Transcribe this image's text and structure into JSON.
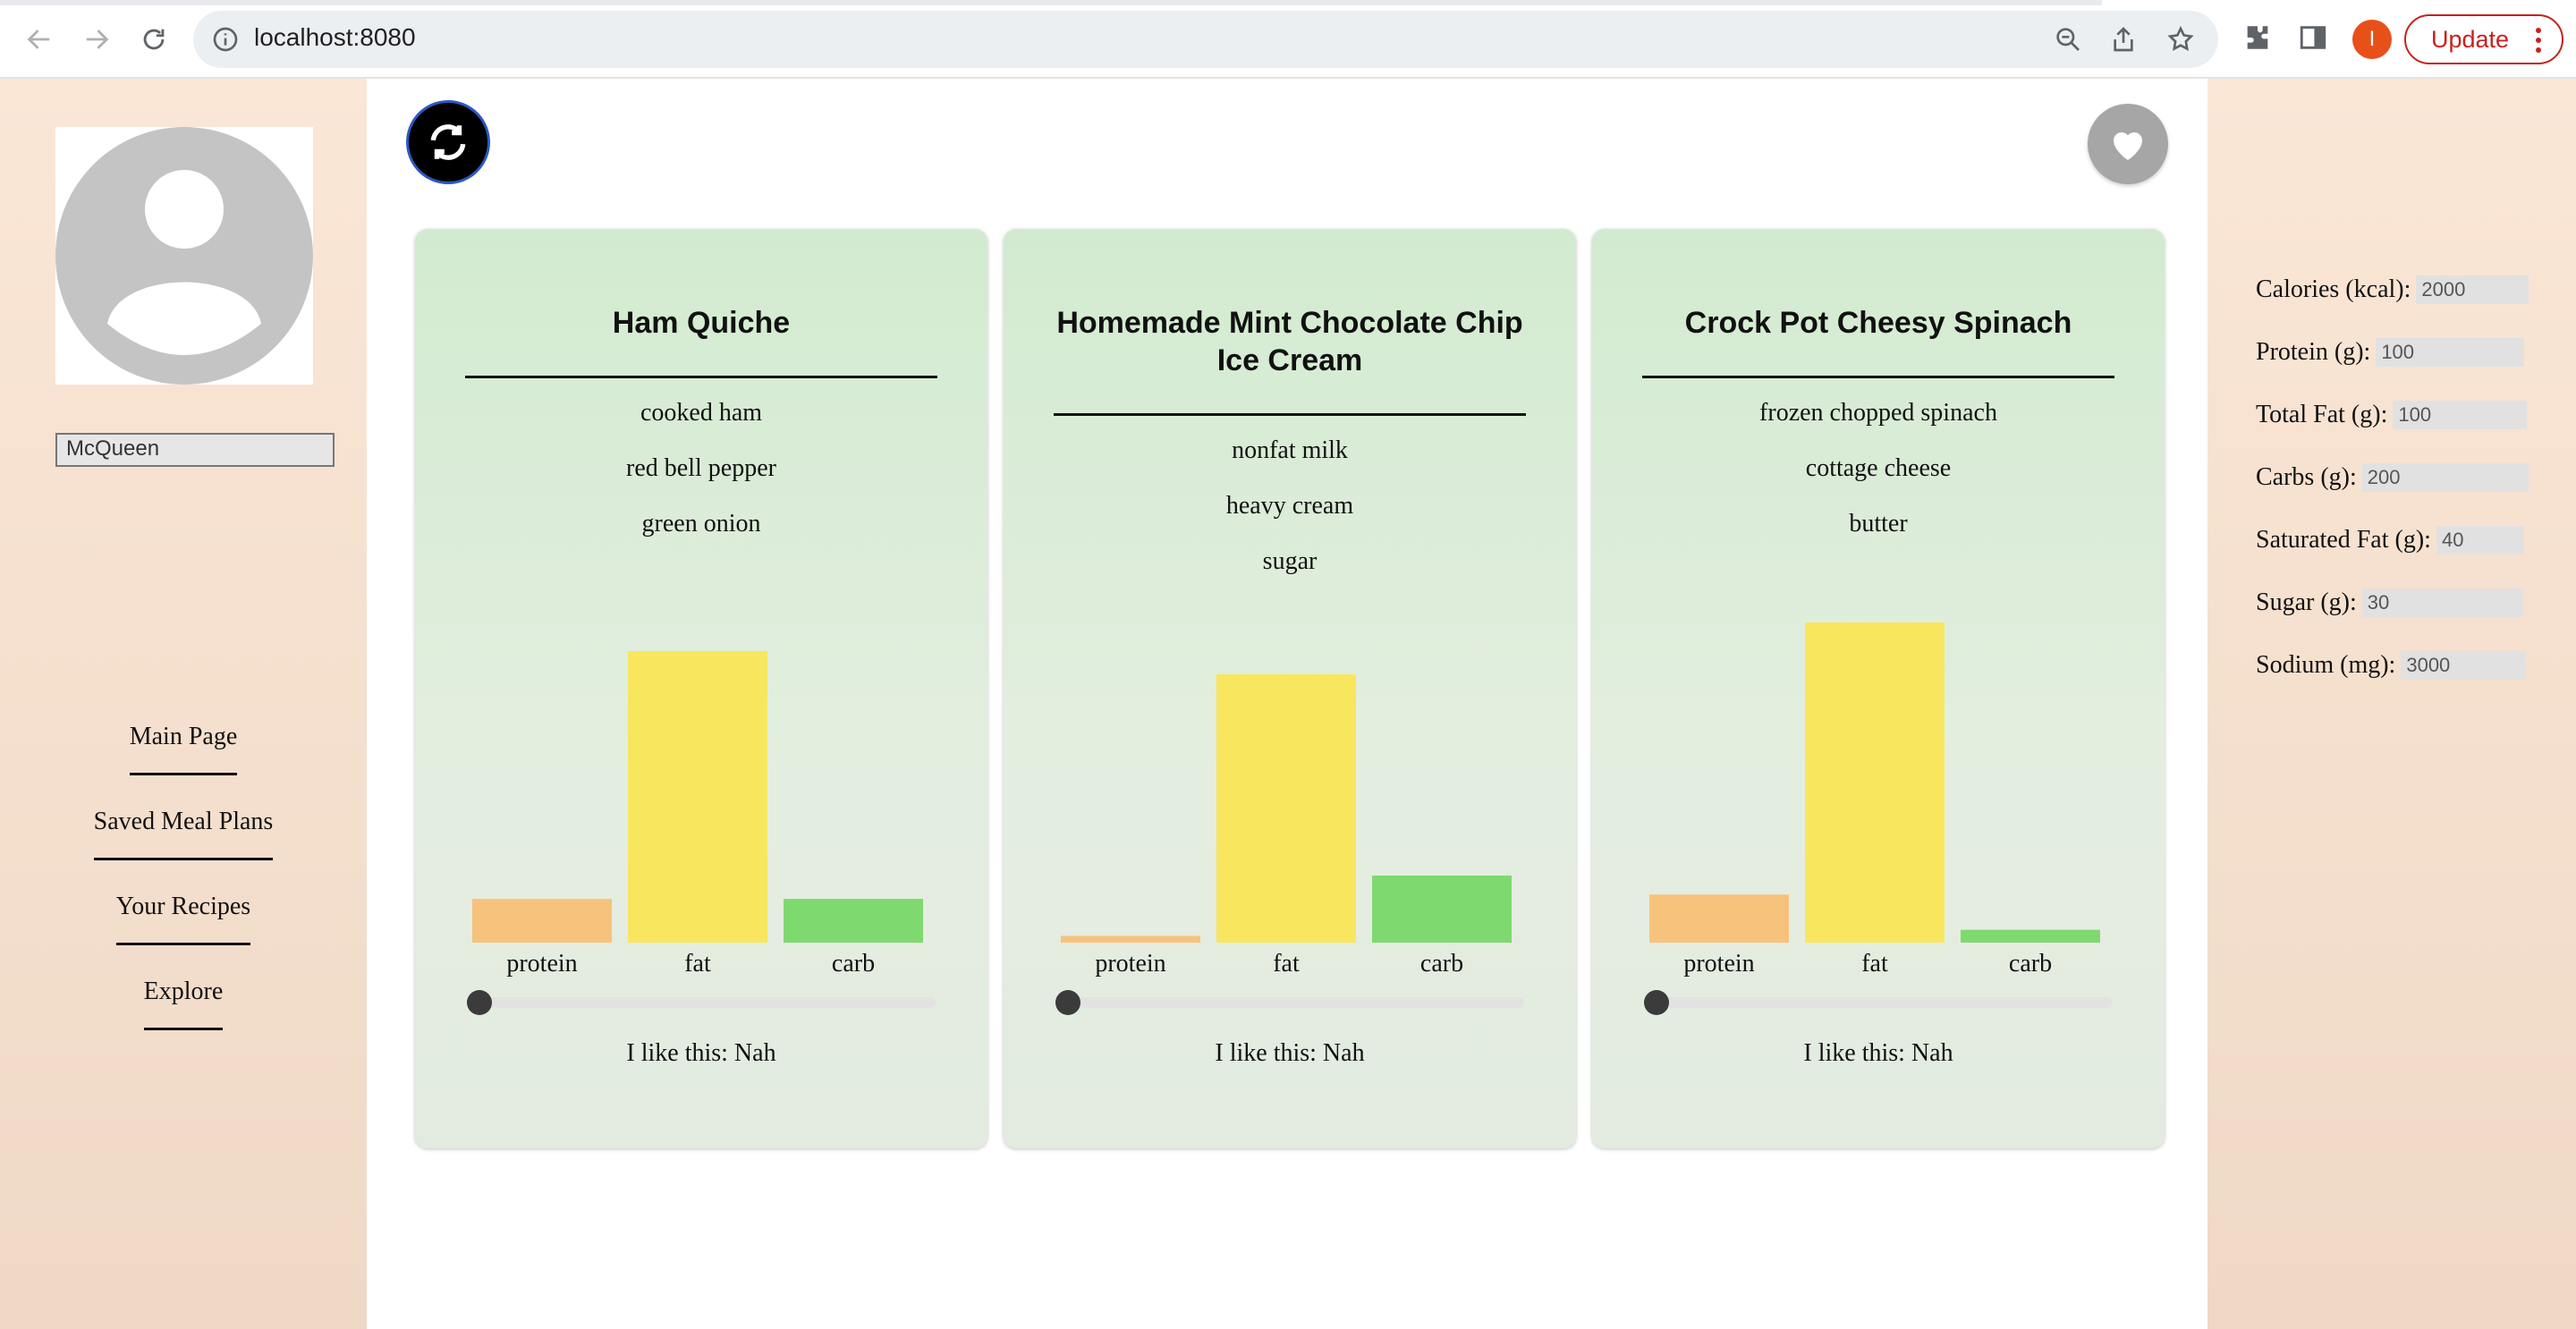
{
  "browser": {
    "url": "localhost:8080",
    "profile_initial": "I",
    "update_label": "Update"
  },
  "user": {
    "name": "McQueen"
  },
  "nav": [
    {
      "label": "Main Page"
    },
    {
      "label": "Saved Meal Plans"
    },
    {
      "label": "Your Recipes"
    },
    {
      "label": "Explore"
    }
  ],
  "cards": [
    {
      "title": "Ham Quiche",
      "ingredients": [
        "cooked ham",
        "red bell pepper",
        "green onion"
      ],
      "macros": {
        "protein": 0.15,
        "fat": 1.0,
        "carb": 0.15
      },
      "slider_value": 0,
      "like_text": "I like this: Nah"
    },
    {
      "title": "Homemade Mint Chocolate Chip Ice Cream",
      "ingredients": [
        "nonfat milk",
        "heavy cream",
        "sugar"
      ],
      "macros": {
        "protein": 0.025,
        "fat": 1.0,
        "carb": 0.25
      },
      "slider_value": 0,
      "like_text": "I like this: Nah"
    },
    {
      "title": "Crock Pot Cheesy Spinach",
      "ingredients": [
        "frozen chopped spinach",
        "cottage cheese",
        "butter"
      ],
      "macros": {
        "protein": 0.15,
        "fat": 1.0,
        "carb": 0.04
      },
      "slider_value": 0,
      "like_text": "I like this: Nah"
    }
  ],
  "macro_labels": [
    "protein",
    "fat",
    "carb"
  ],
  "macro_colors": {
    "protein": "#f7c27c",
    "fat": "#f9e65f",
    "carb": "#7ed96f"
  },
  "goals": [
    {
      "label": "Calories (kcal):",
      "value": "2000"
    },
    {
      "label": "Protein (g):",
      "value": "100"
    },
    {
      "label": "Total Fat (g):",
      "value": "100"
    },
    {
      "label": "Carbs (g):",
      "value": "200"
    },
    {
      "label": "Saturated Fat (g):",
      "value": "40"
    },
    {
      "label": "Sugar (g):",
      "value": "30"
    },
    {
      "label": "Sodium (mg):",
      "value": "3000"
    }
  ]
}
